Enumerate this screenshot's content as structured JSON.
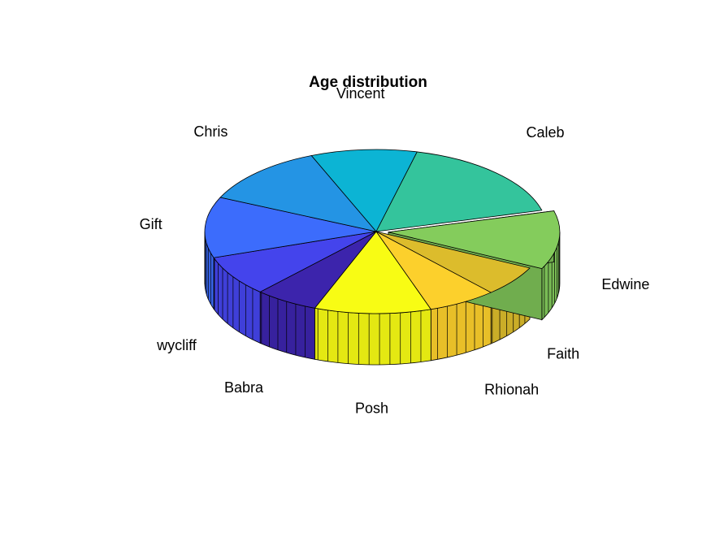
{
  "chart_data": {
    "type": "pie",
    "title": "Age distribution",
    "three_d": true,
    "exploded": [
      "Edwine"
    ],
    "slices": [
      {
        "label": "Edwine",
        "value": 11.5,
        "color": "#84cc5c"
      },
      {
        "label": "Faith",
        "value": 6.0,
        "color": "#dcbc2c"
      },
      {
        "label": "Rhionah",
        "value": 6.5,
        "color": "#fcd02c"
      },
      {
        "label": "Posh",
        "value": 11.0,
        "color": "#f8fc14"
      },
      {
        "label": "Babra",
        "value": 6.0,
        "color": "#3c24ac"
      },
      {
        "label": "wycliff",
        "value": 8.0,
        "color": "#4444ec"
      },
      {
        "label": "Gift",
        "value": 12.0,
        "color": "#3c6cfc"
      },
      {
        "label": "Chris",
        "value": 12.0,
        "color": "#2494e4"
      },
      {
        "label": "Vincent",
        "value": 10.0,
        "color": "#0cb4d4"
      },
      {
        "label": "Caleb",
        "value": 17.0,
        "color": "#34c49c"
      }
    ]
  }
}
